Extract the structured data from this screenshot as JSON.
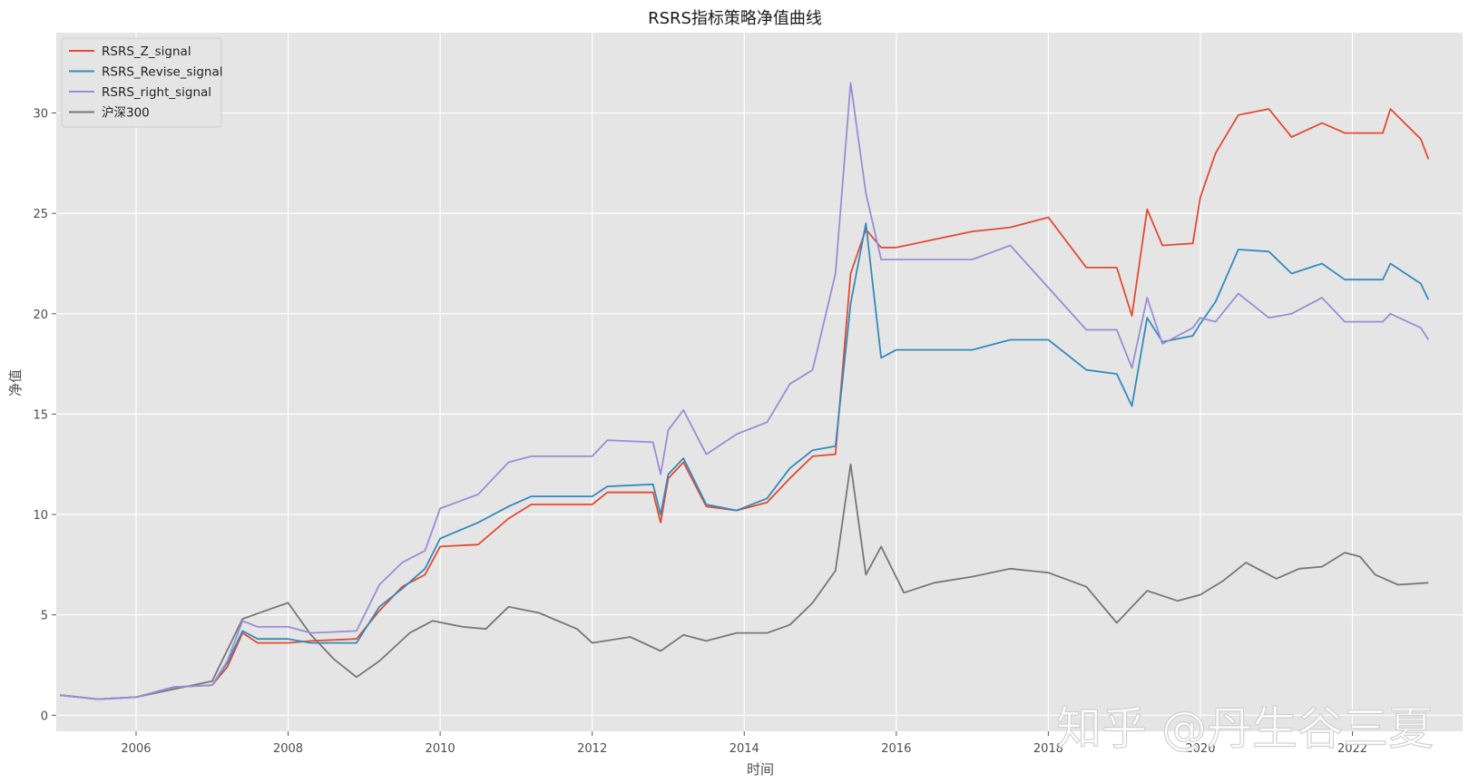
{
  "chart_data": {
    "type": "line",
    "title": "RSRS指标策略净值曲线",
    "xlabel": "时间",
    "ylabel": "净值",
    "xlim": [
      2004.95,
      2023.45
    ],
    "ylim": [
      -0.8,
      34.0
    ],
    "x_ticks": [
      2006,
      2008,
      2010,
      2012,
      2014,
      2016,
      2018,
      2020,
      2022
    ],
    "x_tick_labels": [
      "2006",
      "2008",
      "2010",
      "2012",
      "2014",
      "2016",
      "2018",
      "2020",
      "2022"
    ],
    "y_ticks": [
      0,
      5,
      10,
      15,
      20,
      25,
      30
    ],
    "y_tick_labels": [
      "0",
      "5",
      "10",
      "15",
      "20",
      "25",
      "30"
    ],
    "grid": true,
    "legend_position": "top-left",
    "background": "#e5e5e5",
    "series": [
      {
        "name": "RSRS_Z_signal",
        "color": "#e24a33",
        "x": [
          2005.0,
          2005.5,
          2006.0,
          2006.5,
          2007.0,
          2007.2,
          2007.4,
          2007.6,
          2008.0,
          2008.3,
          2008.9,
          2009.2,
          2009.5,
          2009.8,
          2010.0,
          2010.5,
          2010.9,
          2011.2,
          2012.0,
          2012.2,
          2012.8,
          2012.9,
          2013.0,
          2013.2,
          2013.5,
          2013.9,
          2014.3,
          2014.6,
          2014.9,
          2015.2,
          2015.4,
          2015.6,
          2015.8,
          2016.0,
          2017.0,
          2017.5,
          2018.0,
          2018.5,
          2018.9,
          2019.1,
          2019.3,
          2019.5,
          2019.9,
          2020.0,
          2020.2,
          2020.5,
          2020.9,
          2021.2,
          2021.6,
          2021.9,
          2022.4,
          2022.5,
          2022.9,
          2023.0
        ],
        "values": [
          1.0,
          0.8,
          0.9,
          1.4,
          1.5,
          2.4,
          4.1,
          3.6,
          3.6,
          3.7,
          3.8,
          5.2,
          6.4,
          7.0,
          8.4,
          8.5,
          9.8,
          10.5,
          10.5,
          11.1,
          11.1,
          9.6,
          11.8,
          12.6,
          10.4,
          10.2,
          10.6,
          11.8,
          12.9,
          13.0,
          22.0,
          24.2,
          23.3,
          23.3,
          24.1,
          24.3,
          24.8,
          22.3,
          22.3,
          19.9,
          25.2,
          23.4,
          23.5,
          25.8,
          28.0,
          29.9,
          30.2,
          28.8,
          29.5,
          29.0,
          29.0,
          30.2,
          28.7,
          27.7
        ]
      },
      {
        "name": "RSRS_Revise_signal",
        "color": "#348abd",
        "x": [
          2005.0,
          2005.5,
          2006.0,
          2006.5,
          2007.0,
          2007.2,
          2007.4,
          2007.6,
          2008.0,
          2008.3,
          2008.9,
          2009.2,
          2009.5,
          2009.8,
          2010.0,
          2010.5,
          2010.9,
          2011.2,
          2012.0,
          2012.2,
          2012.8,
          2012.9,
          2013.0,
          2013.2,
          2013.5,
          2013.9,
          2014.3,
          2014.6,
          2014.9,
          2015.2,
          2015.4,
          2015.6,
          2015.8,
          2016.0,
          2017.0,
          2017.5,
          2018.0,
          2018.5,
          2018.9,
          2019.1,
          2019.3,
          2019.5,
          2019.9,
          2020.0,
          2020.2,
          2020.5,
          2020.9,
          2021.2,
          2021.6,
          2021.9,
          2022.4,
          2022.5,
          2022.9,
          2023.0
        ],
        "values": [
          1.0,
          0.8,
          0.9,
          1.4,
          1.5,
          2.6,
          4.2,
          3.8,
          3.8,
          3.6,
          3.6,
          5.4,
          6.3,
          7.3,
          8.8,
          9.6,
          10.4,
          10.9,
          10.9,
          11.4,
          11.5,
          10.0,
          12.0,
          12.8,
          10.5,
          10.2,
          10.8,
          12.3,
          13.2,
          13.4,
          20.5,
          24.5,
          17.8,
          18.2,
          18.2,
          18.7,
          18.7,
          17.2,
          17.0,
          15.4,
          19.8,
          18.6,
          18.9,
          19.5,
          20.6,
          23.2,
          23.1,
          22.0,
          22.5,
          21.7,
          21.7,
          22.5,
          21.5,
          20.7
        ]
      },
      {
        "name": "RSRS_right_signal",
        "color": "#988ed5",
        "x": [
          2005.0,
          2005.5,
          2006.0,
          2006.5,
          2007.0,
          2007.2,
          2007.4,
          2007.6,
          2008.0,
          2008.3,
          2008.9,
          2009.2,
          2009.5,
          2009.8,
          2010.0,
          2010.5,
          2010.9,
          2011.2,
          2012.0,
          2012.2,
          2012.8,
          2012.9,
          2013.0,
          2013.2,
          2013.5,
          2013.9,
          2014.3,
          2014.6,
          2014.9,
          2015.2,
          2015.4,
          2015.6,
          2015.8,
          2016.0,
          2017.0,
          2017.5,
          2018.0,
          2018.5,
          2018.9,
          2019.1,
          2019.3,
          2019.5,
          2019.9,
          2020.0,
          2020.2,
          2020.5,
          2020.9,
          2021.2,
          2021.6,
          2021.9,
          2022.4,
          2022.5,
          2022.9,
          2023.0
        ],
        "values": [
          1.0,
          0.8,
          0.9,
          1.4,
          1.5,
          2.7,
          4.7,
          4.4,
          4.4,
          4.1,
          4.2,
          6.5,
          7.6,
          8.2,
          10.3,
          11.0,
          12.6,
          12.9,
          12.9,
          13.7,
          13.6,
          12.0,
          14.2,
          15.2,
          13.0,
          14.0,
          14.6,
          16.5,
          17.2,
          22.0,
          31.5,
          26.0,
          22.7,
          22.7,
          22.7,
          23.4,
          21.3,
          19.2,
          19.2,
          17.3,
          20.8,
          18.5,
          19.3,
          19.8,
          19.6,
          21.0,
          19.8,
          20.0,
          20.8,
          19.6,
          19.6,
          20.0,
          19.3,
          18.7
        ]
      },
      {
        "name": "沪深300",
        "color": "#777777",
        "x": [
          2005.0,
          2005.5,
          2006.0,
          2006.5,
          2007.0,
          2007.4,
          2007.7,
          2008.0,
          2008.3,
          2008.6,
          2008.9,
          2009.2,
          2009.6,
          2009.9,
          2010.3,
          2010.6,
          2010.9,
          2011.3,
          2011.8,
          2012.0,
          2012.5,
          2012.9,
          2013.2,
          2013.5,
          2013.9,
          2014.3,
          2014.6,
          2014.9,
          2015.2,
          2015.4,
          2015.6,
          2015.8,
          2016.1,
          2016.5,
          2017.0,
          2017.5,
          2018.0,
          2018.5,
          2018.9,
          2019.3,
          2019.7,
          2020.0,
          2020.3,
          2020.6,
          2021.0,
          2021.3,
          2021.6,
          2021.9,
          2022.1,
          2022.3,
          2022.6,
          2023.0
        ],
        "values": [
          1.0,
          0.8,
          0.9,
          1.3,
          1.7,
          4.8,
          5.2,
          5.6,
          4.0,
          2.8,
          1.9,
          2.7,
          4.1,
          4.7,
          4.4,
          4.3,
          5.4,
          5.1,
          4.3,
          3.6,
          3.9,
          3.2,
          4.0,
          3.7,
          4.1,
          4.1,
          4.5,
          5.6,
          7.2,
          12.5,
          7.0,
          8.4,
          6.1,
          6.6,
          6.9,
          7.3,
          7.1,
          6.4,
          4.6,
          6.2,
          5.7,
          6.0,
          6.7,
          7.6,
          6.8,
          7.3,
          7.4,
          8.1,
          7.9,
          7.0,
          6.5,
          6.6
        ]
      }
    ]
  },
  "watermark": "知乎 @丹生谷三夏"
}
